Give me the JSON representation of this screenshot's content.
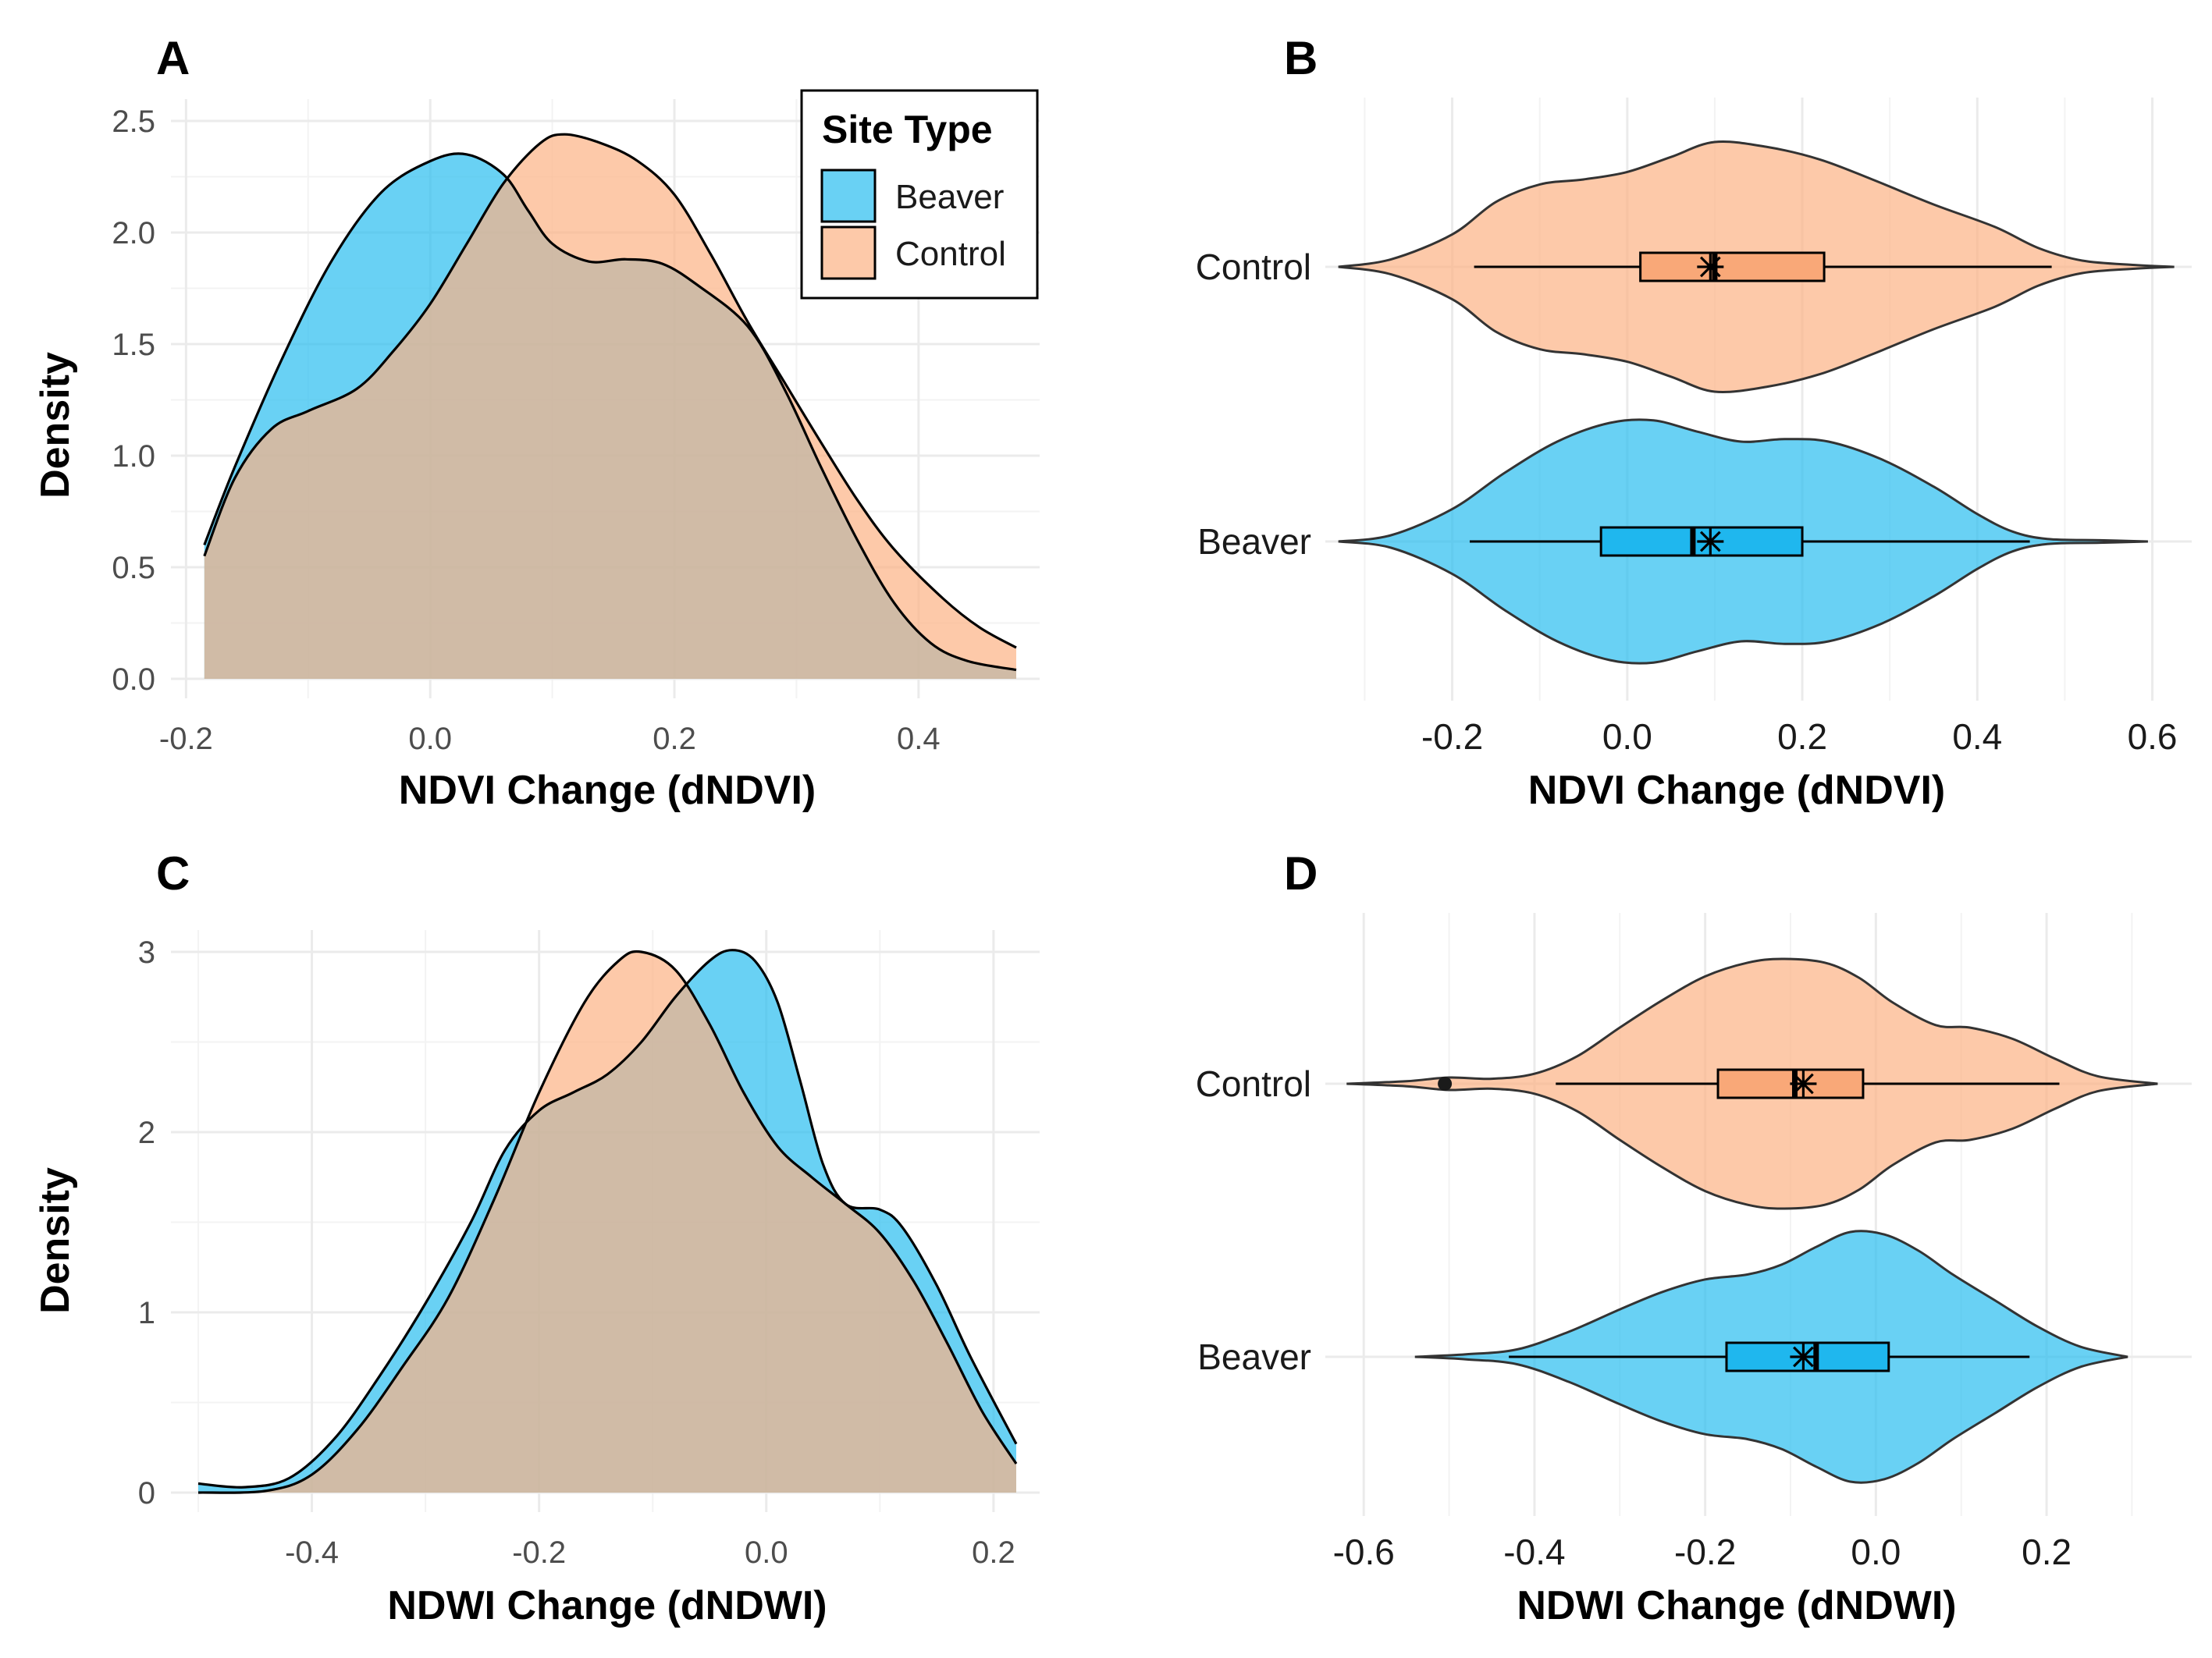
{
  "colors": {
    "beaver": "#29BEF0",
    "control": "#FCB285",
    "box_beaver": "#1FB7EE",
    "box_control": "#F9A878",
    "overlap": "#BFB59E",
    "grid": "#EBEBEB"
  },
  "legend": {
    "title": "Site Type",
    "items": [
      {
        "label": "Beaver",
        "color": "#29BEF0"
      },
      {
        "label": "Control",
        "color": "#FCB285"
      }
    ]
  },
  "chart_data": [
    {
      "panel": "A",
      "type": "area",
      "xlabel": "NDVI Change (dNDVI)",
      "ylabel": "Density",
      "xlim": [
        -0.19,
        0.48
      ],
      "ylim": [
        0,
        2.5
      ],
      "xticks": [
        -0.2,
        0.0,
        0.2,
        0.4
      ],
      "xtick_labels": [
        "-0.2",
        "0.0",
        "0.2",
        "0.4"
      ],
      "yticks": [
        0.0,
        0.5,
        1.0,
        1.5,
        2.0,
        2.5
      ],
      "ytick_labels": [
        "0.0",
        "0.5",
        "1.0",
        "1.5",
        "2.0",
        "2.5"
      ],
      "series": [
        {
          "name": "Beaver",
          "points": [
            [
              -0.185,
              0.6
            ],
            [
              -0.16,
              0.95
            ],
            [
              -0.12,
              1.45
            ],
            [
              -0.08,
              1.88
            ],
            [
              -0.04,
              2.18
            ],
            [
              0.0,
              2.32
            ],
            [
              0.03,
              2.35
            ],
            [
              0.06,
              2.26
            ],
            [
              0.08,
              2.1
            ],
            [
              0.1,
              1.95
            ],
            [
              0.13,
              1.87
            ],
            [
              0.16,
              1.88
            ],
            [
              0.19,
              1.86
            ],
            [
              0.22,
              1.76
            ],
            [
              0.26,
              1.58
            ],
            [
              0.29,
              1.3
            ],
            [
              0.32,
              0.95
            ],
            [
              0.35,
              0.62
            ],
            [
              0.38,
              0.34
            ],
            [
              0.41,
              0.16
            ],
            [
              0.44,
              0.08
            ],
            [
              0.48,
              0.04
            ]
          ]
        },
        {
          "name": "Control",
          "points": [
            [
              -0.185,
              0.55
            ],
            [
              -0.16,
              0.9
            ],
            [
              -0.13,
              1.12
            ],
            [
              -0.1,
              1.2
            ],
            [
              -0.06,
              1.3
            ],
            [
              -0.03,
              1.47
            ],
            [
              0.0,
              1.68
            ],
            [
              0.03,
              1.95
            ],
            [
              0.06,
              2.22
            ],
            [
              0.09,
              2.4
            ],
            [
              0.11,
              2.44
            ],
            [
              0.14,
              2.4
            ],
            [
              0.17,
              2.32
            ],
            [
              0.2,
              2.17
            ],
            [
              0.23,
              1.9
            ],
            [
              0.26,
              1.6
            ],
            [
              0.29,
              1.33
            ],
            [
              0.32,
              1.06
            ],
            [
              0.35,
              0.8
            ],
            [
              0.38,
              0.58
            ],
            [
              0.42,
              0.36
            ],
            [
              0.45,
              0.23
            ],
            [
              0.48,
              0.14
            ]
          ]
        }
      ]
    },
    {
      "panel": "B",
      "type": "violin",
      "xlabel": "NDVI Change (dNDVI)",
      "xlim": [
        -0.345,
        0.645
      ],
      "xticks": [
        -0.2,
        0.0,
        0.2,
        0.4,
        0.6
      ],
      "xtick_labels": [
        "-0.2",
        "0.0",
        "0.2",
        "0.4",
        "0.6"
      ],
      "categories": [
        "Control",
        "Beaver"
      ],
      "groups": [
        {
          "name": "Control",
          "range": [
            -0.33,
            0.625
          ],
          "profile": [
            [
              -0.33,
              0.0
            ],
            [
              -0.27,
              0.06
            ],
            [
              -0.2,
              0.26
            ],
            [
              -0.15,
              0.52
            ],
            [
              -0.1,
              0.66
            ],
            [
              -0.05,
              0.7
            ],
            [
              0.0,
              0.76
            ],
            [
              0.05,
              0.88
            ],
            [
              0.1,
              1.0
            ],
            [
              0.16,
              0.96
            ],
            [
              0.22,
              0.86
            ],
            [
              0.28,
              0.7
            ],
            [
              0.35,
              0.5
            ],
            [
              0.42,
              0.32
            ],
            [
              0.47,
              0.15
            ],
            [
              0.52,
              0.05
            ],
            [
              0.58,
              0.015
            ],
            [
              0.625,
              0.0
            ]
          ],
          "box": {
            "whisker_low": -0.175,
            "q1": 0.015,
            "median": 0.1,
            "q3": 0.225,
            "whisker_high": 0.485
          },
          "mean": 0.095
        },
        {
          "name": "Beaver",
          "range": [
            -0.33,
            0.595
          ],
          "profile": [
            [
              -0.33,
              0.0
            ],
            [
              -0.27,
              0.05
            ],
            [
              -0.2,
              0.26
            ],
            [
              -0.14,
              0.55
            ],
            [
              -0.08,
              0.8
            ],
            [
              -0.02,
              0.95
            ],
            [
              0.03,
              0.97
            ],
            [
              0.08,
              0.88
            ],
            [
              0.13,
              0.8
            ],
            [
              0.18,
              0.82
            ],
            [
              0.23,
              0.8
            ],
            [
              0.29,
              0.66
            ],
            [
              0.35,
              0.44
            ],
            [
              0.4,
              0.22
            ],
            [
              0.44,
              0.08
            ],
            [
              0.48,
              0.02
            ],
            [
              0.54,
              0.01
            ],
            [
              0.595,
              0.0
            ]
          ],
          "box": {
            "whisker_low": -0.18,
            "q1": -0.03,
            "median": 0.075,
            "q3": 0.2,
            "whisker_high": 0.46
          },
          "mean": 0.095
        }
      ]
    },
    {
      "panel": "C",
      "type": "area",
      "xlabel": "NDWI Change (dNDWI)",
      "ylabel": "Density",
      "xlim": [
        -0.5,
        0.22
      ],
      "ylim": [
        0,
        3
      ],
      "xticks": [
        -0.4,
        -0.2,
        0.0,
        0.2
      ],
      "xtick_labels": [
        "-0.4",
        "-0.2",
        "0.0",
        "0.2"
      ],
      "yticks": [
        0,
        1,
        2,
        3
      ],
      "ytick_labels": [
        "0",
        "1",
        "2",
        "3"
      ],
      "series": [
        {
          "name": "Beaver",
          "points": [
            [
              -0.5,
              0.05
            ],
            [
              -0.46,
              0.03
            ],
            [
              -0.42,
              0.08
            ],
            [
              -0.38,
              0.3
            ],
            [
              -0.34,
              0.65
            ],
            [
              -0.3,
              1.05
            ],
            [
              -0.26,
              1.5
            ],
            [
              -0.23,
              1.9
            ],
            [
              -0.2,
              2.12
            ],
            [
              -0.17,
              2.22
            ],
            [
              -0.14,
              2.32
            ],
            [
              -0.11,
              2.5
            ],
            [
              -0.08,
              2.75
            ],
            [
              -0.05,
              2.95
            ],
            [
              -0.03,
              3.01
            ],
            [
              -0.01,
              2.95
            ],
            [
              0.01,
              2.72
            ],
            [
              0.03,
              2.28
            ],
            [
              0.05,
              1.82
            ],
            [
              0.07,
              1.6
            ],
            [
              0.1,
              1.57
            ],
            [
              0.12,
              1.47
            ],
            [
              0.15,
              1.15
            ],
            [
              0.18,
              0.75
            ],
            [
              0.22,
              0.27
            ]
          ]
        },
        {
          "name": "Control",
          "points": [
            [
              -0.5,
              0.0
            ],
            [
              -0.44,
              0.01
            ],
            [
              -0.4,
              0.1
            ],
            [
              -0.36,
              0.35
            ],
            [
              -0.32,
              0.7
            ],
            [
              -0.28,
              1.08
            ],
            [
              -0.24,
              1.62
            ],
            [
              -0.2,
              2.22
            ],
            [
              -0.16,
              2.72
            ],
            [
              -0.13,
              2.95
            ],
            [
              -0.11,
              3.0
            ],
            [
              -0.08,
              2.9
            ],
            [
              -0.05,
              2.6
            ],
            [
              -0.02,
              2.22
            ],
            [
              0.01,
              1.92
            ],
            [
              0.04,
              1.75
            ],
            [
              0.07,
              1.6
            ],
            [
              0.1,
              1.44
            ],
            [
              0.13,
              1.17
            ],
            [
              0.16,
              0.82
            ],
            [
              0.19,
              0.45
            ],
            [
              0.22,
              0.16
            ]
          ]
        }
      ]
    },
    {
      "panel": "D",
      "type": "violin",
      "xlabel": "NDWI Change (dNDWI)",
      "xlim": [
        -0.645,
        0.37
      ],
      "xticks": [
        -0.6,
        -0.4,
        -0.2,
        0.0,
        0.2
      ],
      "xtick_labels": [
        "-0.6",
        "-0.4",
        "-0.2",
        "0.0",
        "0.2"
      ],
      "categories": [
        "Control",
        "Beaver"
      ],
      "groups": [
        {
          "name": "Control",
          "range": [
            -0.62,
            0.33
          ],
          "profile": [
            [
              -0.62,
              0.0
            ],
            [
              -0.55,
              0.02
            ],
            [
              -0.5,
              0.05
            ],
            [
              -0.45,
              0.04
            ],
            [
              -0.4,
              0.08
            ],
            [
              -0.35,
              0.22
            ],
            [
              -0.3,
              0.45
            ],
            [
              -0.25,
              0.67
            ],
            [
              -0.2,
              0.86
            ],
            [
              -0.15,
              0.97
            ],
            [
              -0.11,
              1.0
            ],
            [
              -0.06,
              0.97
            ],
            [
              -0.02,
              0.85
            ],
            [
              0.02,
              0.65
            ],
            [
              0.07,
              0.47
            ],
            [
              0.11,
              0.45
            ],
            [
              0.16,
              0.36
            ],
            [
              0.21,
              0.2
            ],
            [
              0.26,
              0.06
            ],
            [
              0.33,
              0.0
            ]
          ],
          "box": {
            "whisker_low": -0.375,
            "q1": -0.185,
            "median": -0.095,
            "q3": -0.015,
            "whisker_high": 0.215
          },
          "mean": -0.085,
          "outliers": [
            -0.505
          ]
        },
        {
          "name": "Beaver",
          "range": [
            -0.54,
            0.295
          ],
          "profile": [
            [
              -0.54,
              0.0
            ],
            [
              -0.48,
              0.02
            ],
            [
              -0.42,
              0.06
            ],
            [
              -0.36,
              0.2
            ],
            [
              -0.3,
              0.38
            ],
            [
              -0.25,
              0.52
            ],
            [
              -0.2,
              0.62
            ],
            [
              -0.15,
              0.66
            ],
            [
              -0.11,
              0.74
            ],
            [
              -0.07,
              0.88
            ],
            [
              -0.03,
              1.0
            ],
            [
              0.01,
              0.98
            ],
            [
              0.05,
              0.85
            ],
            [
              0.09,
              0.66
            ],
            [
              0.14,
              0.45
            ],
            [
              0.19,
              0.24
            ],
            [
              0.24,
              0.08
            ],
            [
              0.295,
              0.0
            ]
          ],
          "box": {
            "whisker_low": -0.43,
            "q1": -0.175,
            "median": -0.07,
            "q3": 0.015,
            "whisker_high": 0.18
          },
          "mean": -0.085
        }
      ]
    }
  ],
  "panels": {
    "A": {
      "label": "A"
    },
    "B": {
      "label": "B"
    },
    "C": {
      "label": "C"
    },
    "D": {
      "label": "D"
    }
  }
}
